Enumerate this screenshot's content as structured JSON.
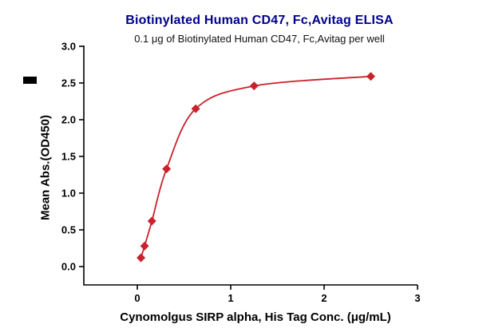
{
  "chart_data": {
    "type": "scatter",
    "title": "Biotinylated Human CD47, Fc,Avitag ELISA",
    "subtitle": "0.1 μg of Biotinylated Human CD47, Fc,Avitag per well",
    "xlabel": "Cynomolgus SIRP alpha, His Tag Conc. (μg/mL)",
    "ylabel": "Mean Abs.(OD450)",
    "series": [
      {
        "name": "Cynomolgus SIRP alpha, His Tag",
        "x": [
          0.039,
          0.078,
          0.156,
          0.313,
          0.625,
          1.25,
          2.5
        ],
        "y": [
          0.12,
          0.28,
          0.62,
          1.33,
          2.15,
          2.46,
          2.59
        ]
      }
    ],
    "fit": "4PL sigmoidal dose-response curve through data points",
    "marker": "filled-diamond",
    "color": "#c8232c",
    "title_color": "#00008b",
    "axis_color": "#000000",
    "xlim": [
      0,
      3
    ],
    "ylim": [
      0,
      3
    ],
    "xticks": {
      "values": [
        0,
        1,
        2,
        3
      ],
      "labels": [
        "0",
        "1",
        "2",
        "3"
      ]
    },
    "yticks": {
      "values": [
        0,
        0.5,
        1,
        1.5,
        2,
        2.5,
        3
      ],
      "labels": [
        "0.0",
        "0.5",
        "1.0",
        "1.5",
        "2.0",
        "2.5",
        "3.0"
      ]
    },
    "grid": false,
    "legend": "none"
  }
}
